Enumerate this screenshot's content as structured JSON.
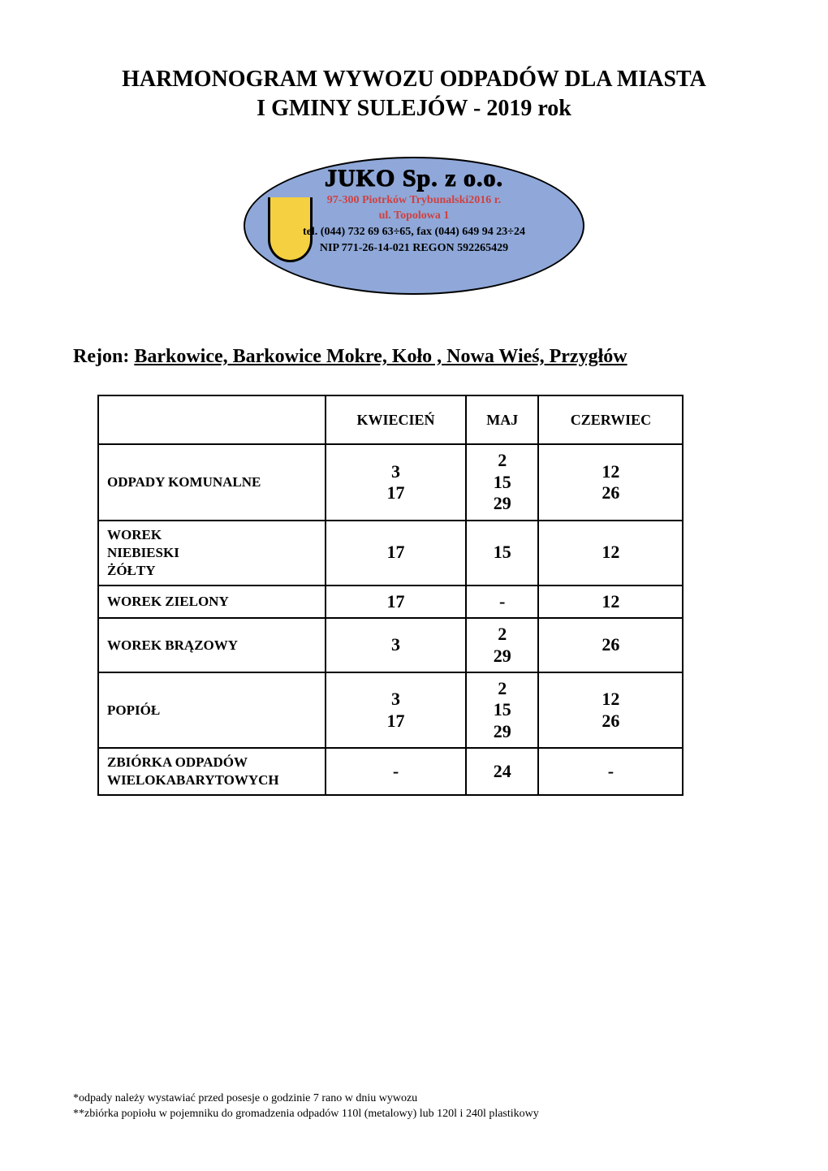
{
  "title_line1": "HARMONOGRAM WYWOZU ODPADÓW DLA MIASTA",
  "title_line2": "I GMINY SULEJÓW - 2019 rok",
  "logo": {
    "company_name": "JUKO Sp. z o.o.",
    "addr1": "97-300 Piotrków Trybunalski2016 r.",
    "addr2": "ul. Topolowa 1",
    "tel": "tel. (044) 732 69 63÷65, fax (044) 649 94 23÷24",
    "nip": "NIP 771-26-14-021 REGON 592265429",
    "bg_color": "#8fa8d9",
    "text_red": "#d04040",
    "u_fill": "#f5d040"
  },
  "region": {
    "label": "Rejon: ",
    "value": "Barkowice, Barkowice Mokre, Koło , Nowa Wieś, Przygłów"
  },
  "table": {
    "months": [
      "KWIECIEŃ",
      "MAJ",
      "CZERWIEC"
    ],
    "rows": [
      {
        "label": "ODPADY KOMUNALNE",
        "multiline": false,
        "values": [
          "3\n17",
          "2\n15\n29",
          "12\n26"
        ]
      },
      {
        "label": "WOREK\nNIEBIESKI\nŻÓŁTY",
        "multiline": true,
        "values": [
          "17",
          "15",
          "12"
        ]
      },
      {
        "label": "WOREK ZIELONY",
        "multiline": false,
        "values": [
          "17",
          "-",
          "12"
        ]
      },
      {
        "label": "WOREK BRĄZOWY",
        "multiline": false,
        "values": [
          "3",
          "2\n29",
          "26"
        ]
      },
      {
        "label": "POPIÓŁ",
        "multiline": false,
        "values": [
          "3\n17",
          "2\n15\n29",
          "12\n26"
        ]
      },
      {
        "label": "ZBIÓRKA ODPADÓW\nWIELOKABARYTOWYCH",
        "multiline": true,
        "values": [
          "-",
          "24",
          "-"
        ]
      }
    ]
  },
  "footnotes": {
    "n1": "*odpady należy wystawiać przed posesje o godzinie 7 rano w dniu wywozu",
    "n2": "**zbiórka popiołu w pojemniku do gromadzenia odpadów 110l (metalowy) lub 120l i 240l plastikowy"
  }
}
